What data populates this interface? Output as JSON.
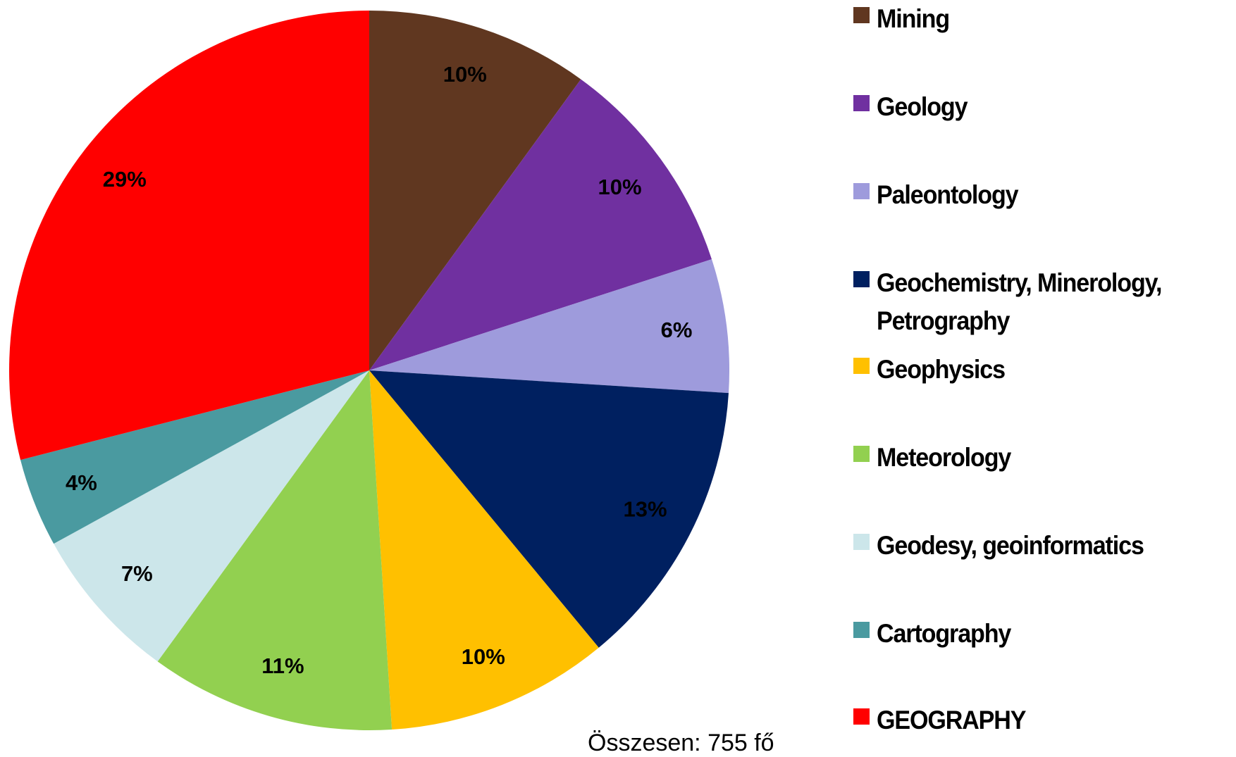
{
  "chart_data": {
    "type": "pie",
    "categories": [
      "Mining",
      "Geology",
      "Paleontology",
      "Geochemistry, Minerology, Petrography",
      "Geophysics",
      "Meteorology",
      "Geodesy, geoinformatics",
      "Cartography",
      "GEOGRAPHY"
    ],
    "values": [
      10,
      10,
      6,
      13,
      10,
      11,
      7,
      4,
      29
    ],
    "value_labels": [
      "10%",
      "10%",
      "6%",
      "13%",
      "10%",
      "11%",
      "7%",
      "4%",
      "29%"
    ],
    "colors": [
      "#603720",
      "#7030a0",
      "#9e9bdc",
      "#002060",
      "#ffc000",
      "#92d050",
      "#cce6ea",
      "#4a9aa0",
      "#ff0000"
    ],
    "legend": "right",
    "annotation": "Összesen: 755 fő"
  }
}
